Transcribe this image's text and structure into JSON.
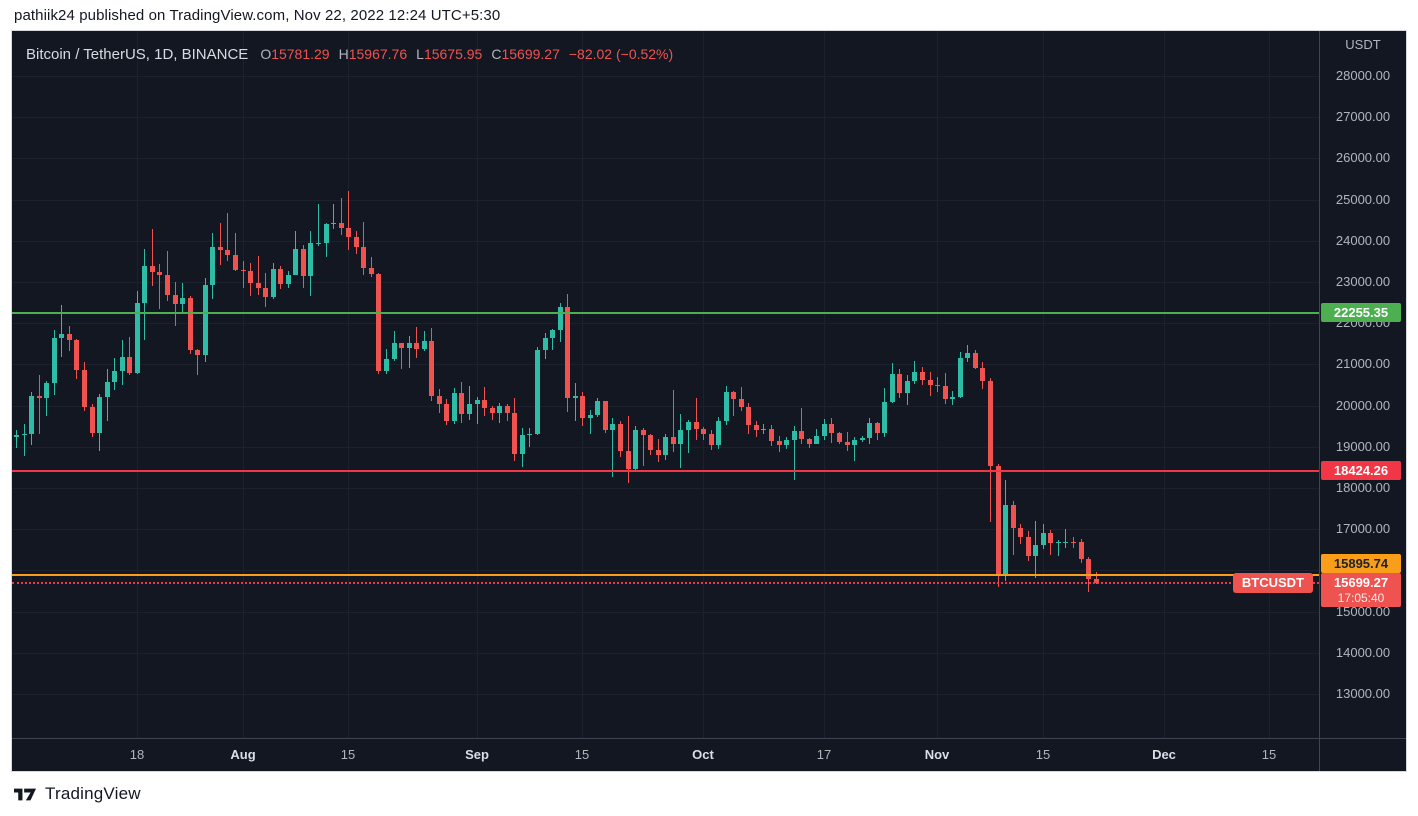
{
  "page": {
    "published_line": "pathiik24 published on TradingView.com, Nov 22, 2022 12:24 UTC+5:30",
    "brand": "TradingView"
  },
  "header": {
    "symbol_title": "Bitcoin / TetherUS, 1D, BINANCE",
    "o_label": "O",
    "o": "15781.29",
    "h_label": "H",
    "h": "15967.76",
    "l_label": "L",
    "l": "15675.95",
    "c_label": "C",
    "c": "15699.27",
    "change": "−82.02 (−0.52%)"
  },
  "price_axis": {
    "currency": "USDT",
    "ticks": [
      28000,
      27000,
      26000,
      25000,
      24000,
      23000,
      22000,
      21000,
      20000,
      19000,
      18000,
      17000,
      16000,
      15000,
      14000,
      13000
    ],
    "level_labels": [
      {
        "text": "22255.35",
        "price": 22255.35,
        "bg": "#4caf50",
        "fg": "#ffffff"
      },
      {
        "text": "18424.26",
        "price": 18424.26,
        "bg": "#f23645",
        "fg": "#ffffff"
      },
      {
        "text": "15895.74",
        "price": 15895.74,
        "bg": "#f89e1b",
        "fg": "#1e222d"
      }
    ],
    "last_price": {
      "text": "15699.27",
      "countdown": "17:05:40",
      "price": 15699.27,
      "bg": "#ef5350",
      "fg": "#ffffff"
    }
  },
  "time_axis": {
    "ticks": [
      {
        "label": "18",
        "day": 16,
        "major": false
      },
      {
        "label": "Aug",
        "day": 30,
        "major": true
      },
      {
        "label": "15",
        "day": 44,
        "major": false
      },
      {
        "label": "Sep",
        "day": 61,
        "major": true
      },
      {
        "label": "15",
        "day": 75,
        "major": false
      },
      {
        "label": "Oct",
        "day": 91,
        "major": true
      },
      {
        "label": "17",
        "day": 107,
        "major": false
      },
      {
        "label": "Nov",
        "day": 122,
        "major": true
      },
      {
        "label": "15",
        "day": 136,
        "major": false
      },
      {
        "label": "Dec",
        "day": 152,
        "major": true
      },
      {
        "label": "15",
        "day": 166,
        "major": false
      }
    ]
  },
  "plot": {
    "series_label": "BTCUSDT",
    "lines": [
      {
        "price": 22255.35,
        "color": "#4caf50",
        "style": "solid"
      },
      {
        "price": 18424.26,
        "color": "#f23645",
        "style": "solid"
      },
      {
        "price": 15895.74,
        "color": "#f89e1b",
        "style": "solid"
      },
      {
        "price": 15699.27,
        "color": "#f23645",
        "style": "dotted"
      }
    ]
  },
  "chart_data": {
    "type": "candlestick",
    "title": "Bitcoin / TetherUS, 1D, BINANCE",
    "symbol": "BTCUSDT",
    "exchange": "BINANCE",
    "interval": "1D",
    "quote_currency": "USDT",
    "ylim": [
      12600,
      28400
    ],
    "y_ticks_step": 1000,
    "grid": true,
    "last_candle_ohlc": {
      "o": 15781.29,
      "h": 15967.76,
      "l": 15675.95,
      "c": 15699.27,
      "change": -82.02,
      "change_pct": -0.52
    },
    "horizontal_levels": [
      22255.35,
      18424.26,
      15895.74,
      15699.27
    ],
    "colors": {
      "up": "#2ebca6",
      "down": "#f0524f",
      "background": "#131722"
    },
    "candles": [
      [
        "2022-07-02",
        19242,
        19402,
        18965,
        19297
      ],
      [
        "2022-07-03",
        19297,
        19550,
        18768,
        19314
      ],
      [
        "2022-07-04",
        19314,
        20331,
        19053,
        20231
      ],
      [
        "2022-07-05",
        20231,
        20736,
        19305,
        20175
      ],
      [
        "2022-07-06",
        20175,
        20600,
        19736,
        20548
      ],
      [
        "2022-07-07",
        20548,
        21839,
        20249,
        21637
      ],
      [
        "2022-07-08",
        21637,
        22450,
        21174,
        21731
      ],
      [
        "2022-07-09",
        21731,
        21925,
        21322,
        21592
      ],
      [
        "2022-07-10",
        21592,
        21610,
        20656,
        20860
      ],
      [
        "2022-07-11",
        20860,
        21062,
        19879,
        19970
      ],
      [
        "2022-07-12",
        19970,
        20042,
        19240,
        19323
      ],
      [
        "2022-07-13",
        19323,
        20280,
        18910,
        20212
      ],
      [
        "2022-07-14",
        20212,
        20900,
        19616,
        20569
      ],
      [
        "2022-07-15",
        20569,
        21166,
        20373,
        20836
      ],
      [
        "2022-07-16",
        20836,
        21586,
        20504,
        21190
      ],
      [
        "2022-07-17",
        21190,
        21657,
        20750,
        20781
      ],
      [
        "2022-07-18",
        20781,
        22777,
        20762,
        22485
      ],
      [
        "2022-07-19",
        22485,
        23800,
        21587,
        23389
      ],
      [
        "2022-07-20",
        23389,
        24276,
        22905,
        23231
      ],
      [
        "2022-07-21",
        23231,
        23438,
        22341,
        23164
      ],
      [
        "2022-07-22",
        23164,
        23752,
        22532,
        22690
      ],
      [
        "2022-07-23",
        22690,
        22989,
        21937,
        22465
      ],
      [
        "2022-07-24",
        22465,
        22979,
        22258,
        22609
      ],
      [
        "2022-07-25",
        22609,
        22670,
        21258,
        21361
      ],
      [
        "2022-07-26",
        21361,
        21371,
        20735,
        21239
      ],
      [
        "2022-07-27",
        21239,
        23090,
        21053,
        22930
      ],
      [
        "2022-07-28",
        22930,
        24190,
        22576,
        23843
      ],
      [
        "2022-07-29",
        23843,
        24436,
        23417,
        23773
      ],
      [
        "2022-07-30",
        23773,
        24668,
        23516,
        23644
      ],
      [
        "2022-07-31",
        23644,
        24185,
        23257,
        23303
      ],
      [
        "2022-08-01",
        23303,
        23512,
        22850,
        23269
      ],
      [
        "2022-08-02",
        23269,
        23457,
        22654,
        22978
      ],
      [
        "2022-08-03",
        22978,
        23631,
        22675,
        22846
      ],
      [
        "2022-08-04",
        22846,
        23211,
        22400,
        22630
      ],
      [
        "2022-08-05",
        22630,
        23472,
        22586,
        23312
      ],
      [
        "2022-08-06",
        23312,
        23394,
        22838,
        22954
      ],
      [
        "2022-08-07",
        22954,
        23270,
        22848,
        23175
      ],
      [
        "2022-08-08",
        23175,
        24245,
        23159,
        23810
      ],
      [
        "2022-08-09",
        23810,
        23900,
        22865,
        23150
      ],
      [
        "2022-08-10",
        23150,
        24226,
        22664,
        23948
      ],
      [
        "2022-08-11",
        23948,
        24896,
        23867,
        23957
      ],
      [
        "2022-08-12",
        23957,
        24437,
        23608,
        24402
      ],
      [
        "2022-08-13",
        24402,
        24889,
        24297,
        24441
      ],
      [
        "2022-08-14",
        24441,
        25047,
        24144,
        24305
      ],
      [
        "2022-08-15",
        24305,
        25211,
        23770,
        24094
      ],
      [
        "2022-08-16",
        24094,
        24247,
        23671,
        23854
      ],
      [
        "2022-08-17",
        23854,
        24448,
        23180,
        23342
      ],
      [
        "2022-08-18",
        23342,
        23600,
        23116,
        23191
      ],
      [
        "2022-08-19",
        23191,
        23211,
        20766,
        20834
      ],
      [
        "2022-08-20",
        20834,
        21374,
        20768,
        21140
      ],
      [
        "2022-08-21",
        21140,
        21800,
        21081,
        21516
      ],
      [
        "2022-08-22",
        21516,
        21527,
        20899,
        21398
      ],
      [
        "2022-08-23",
        21398,
        21693,
        20915,
        21529
      ],
      [
        "2022-08-24",
        21529,
        21900,
        21152,
        21368
      ],
      [
        "2022-08-25",
        21368,
        21819,
        21319,
        21559
      ],
      [
        "2022-08-26",
        21559,
        21884,
        20107,
        20241
      ],
      [
        "2022-08-27",
        20241,
        20392,
        19811,
        20037
      ],
      [
        "2022-08-28",
        20037,
        20171,
        19524,
        19616
      ],
      [
        "2022-08-29",
        19616,
        20434,
        19553,
        20298
      ],
      [
        "2022-08-30",
        20298,
        20576,
        19567,
        19799
      ],
      [
        "2022-08-31",
        19799,
        20486,
        19655,
        20050
      ],
      [
        "2022-09-01",
        20050,
        20200,
        19561,
        20127
      ],
      [
        "2022-09-02",
        20127,
        20444,
        19755,
        19952
      ],
      [
        "2022-09-03",
        19952,
        19985,
        19652,
        19832
      ],
      [
        "2022-09-04",
        19832,
        20059,
        19588,
        19988
      ],
      [
        "2022-09-05",
        19988,
        20029,
        19633,
        19812
      ],
      [
        "2022-09-06",
        19812,
        20180,
        18649,
        18837
      ],
      [
        "2022-09-07",
        18837,
        19461,
        18510,
        19290
      ],
      [
        "2022-09-08",
        19290,
        19450,
        19000,
        19320
      ],
      [
        "2022-09-09",
        19320,
        21430,
        19292,
        21360
      ],
      [
        "2022-09-10",
        21360,
        21770,
        21129,
        21651
      ],
      [
        "2022-09-11",
        21651,
        21850,
        21346,
        21827
      ],
      [
        "2022-09-12",
        21827,
        22488,
        21543,
        22395
      ],
      [
        "2022-09-13",
        22395,
        22700,
        19856,
        20173
      ],
      [
        "2022-09-14",
        20173,
        20545,
        19620,
        20226
      ],
      [
        "2022-09-15",
        20226,
        20325,
        19497,
        19701
      ],
      [
        "2022-09-16",
        19701,
        19890,
        19321,
        19772
      ],
      [
        "2022-09-17",
        19772,
        20190,
        19731,
        20115
      ],
      [
        "2022-09-18",
        20115,
        20117,
        19335,
        19419
      ],
      [
        "2022-09-19",
        19419,
        19690,
        18271,
        19544
      ],
      [
        "2022-09-20",
        19544,
        19626,
        18742,
        18890
      ],
      [
        "2022-09-21",
        18890,
        19753,
        18125,
        18461
      ],
      [
        "2022-09-22",
        18461,
        19500,
        18388,
        19401
      ],
      [
        "2022-09-23",
        19401,
        19461,
        18529,
        19289
      ],
      [
        "2022-09-24",
        19289,
        19315,
        18808,
        18923
      ],
      [
        "2022-09-25",
        18923,
        19180,
        18641,
        18807
      ],
      [
        "2022-09-26",
        18807,
        19320,
        18680,
        19227
      ],
      [
        "2022-09-27",
        19227,
        20370,
        18863,
        19079
      ],
      [
        "2022-09-28",
        19079,
        19790,
        18478,
        19412
      ],
      [
        "2022-09-29",
        19412,
        19645,
        18843,
        19590
      ],
      [
        "2022-09-30",
        19590,
        20180,
        19155,
        19423
      ],
      [
        "2022-10-01",
        19423,
        19484,
        19160,
        19312
      ],
      [
        "2022-10-02",
        19312,
        19398,
        18920,
        19044
      ],
      [
        "2022-10-03",
        19044,
        19718,
        18958,
        19623
      ],
      [
        "2022-10-04",
        19623,
        20475,
        19521,
        20336
      ],
      [
        "2022-10-05",
        20336,
        20365,
        19753,
        20160
      ],
      [
        "2022-10-06",
        20160,
        20456,
        19868,
        19955
      ],
      [
        "2022-10-07",
        19955,
        20063,
        19320,
        19527
      ],
      [
        "2022-10-08",
        19527,
        19616,
        19237,
        19417
      ],
      [
        "2022-10-09",
        19417,
        19554,
        19311,
        19440
      ],
      [
        "2022-10-10",
        19440,
        19525,
        19021,
        19132
      ],
      [
        "2022-10-11",
        19132,
        19268,
        18863,
        19051
      ],
      [
        "2022-10-12",
        19051,
        19227,
        18946,
        19155
      ],
      [
        "2022-10-13",
        19155,
        19513,
        18190,
        19375
      ],
      [
        "2022-10-14",
        19375,
        19949,
        19072,
        19178
      ],
      [
        "2022-10-15",
        19178,
        19223,
        18975,
        19068
      ],
      [
        "2022-10-16",
        19068,
        19420,
        19063,
        19260
      ],
      [
        "2022-10-17",
        19260,
        19672,
        19156,
        19548
      ],
      [
        "2022-10-18",
        19548,
        19707,
        19097,
        19327
      ],
      [
        "2022-10-19",
        19327,
        19348,
        19072,
        19123
      ],
      [
        "2022-10-20",
        19123,
        19350,
        18900,
        19041
      ],
      [
        "2022-10-21",
        19041,
        19248,
        18650,
        19163
      ],
      [
        "2022-10-22",
        19163,
        19257,
        19106,
        19204
      ],
      [
        "2022-10-23",
        19204,
        19698,
        19076,
        19570
      ],
      [
        "2022-10-24",
        19570,
        19601,
        19157,
        19330
      ],
      [
        "2022-10-25",
        19330,
        20426,
        19243,
        20080
      ],
      [
        "2022-10-26",
        20080,
        21022,
        20056,
        20773
      ],
      [
        "2022-10-27",
        20773,
        20879,
        20192,
        20296
      ],
      [
        "2022-10-28",
        20296,
        20748,
        20022,
        20592
      ],
      [
        "2022-10-29",
        20592,
        21085,
        20527,
        20810
      ],
      [
        "2022-10-30",
        20810,
        20931,
        20510,
        20626
      ],
      [
        "2022-10-31",
        20626,
        20826,
        20238,
        20490
      ],
      [
        "2022-11-01",
        20490,
        20700,
        20331,
        20485
      ],
      [
        "2022-11-02",
        20485,
        20800,
        20049,
        20151
      ],
      [
        "2022-11-03",
        20151,
        20361,
        20021,
        20207
      ],
      [
        "2022-11-04",
        20207,
        21298,
        20178,
        21147
      ],
      [
        "2022-11-05",
        21147,
        21480,
        21069,
        21282
      ],
      [
        "2022-11-06",
        21282,
        21360,
        20896,
        20907
      ],
      [
        "2022-11-07",
        20907,
        21069,
        20403,
        20602
      ],
      [
        "2022-11-08",
        20602,
        20665,
        17166,
        18541
      ],
      [
        "2022-11-09",
        18541,
        18590,
        15588,
        15880
      ],
      [
        "2022-11-10",
        15880,
        18199,
        15754,
        17586
      ],
      [
        "2022-11-11",
        17586,
        17690,
        16369,
        17034
      ],
      [
        "2022-11-12",
        17034,
        17122,
        16636,
        16799
      ],
      [
        "2022-11-13",
        16799,
        16954,
        16229,
        16353
      ],
      [
        "2022-11-14",
        16353,
        17190,
        15815,
        16618
      ],
      [
        "2022-11-15",
        16618,
        17134,
        16527,
        16900
      ],
      [
        "2022-11-16",
        16900,
        16969,
        16378,
        16662
      ],
      [
        "2022-11-17",
        16662,
        16748,
        16361,
        16692
      ],
      [
        "2022-11-18",
        16692,
        17011,
        16546,
        16700
      ],
      [
        "2022-11-19",
        16700,
        16818,
        16553,
        16697
      ],
      [
        "2022-11-20",
        16697,
        16754,
        16180,
        16280
      ],
      [
        "2022-11-21",
        16280,
        16314,
        15476,
        15781
      ],
      [
        "2022-11-22",
        15781.29,
        15967.76,
        15675.95,
        15699.27
      ]
    ]
  }
}
